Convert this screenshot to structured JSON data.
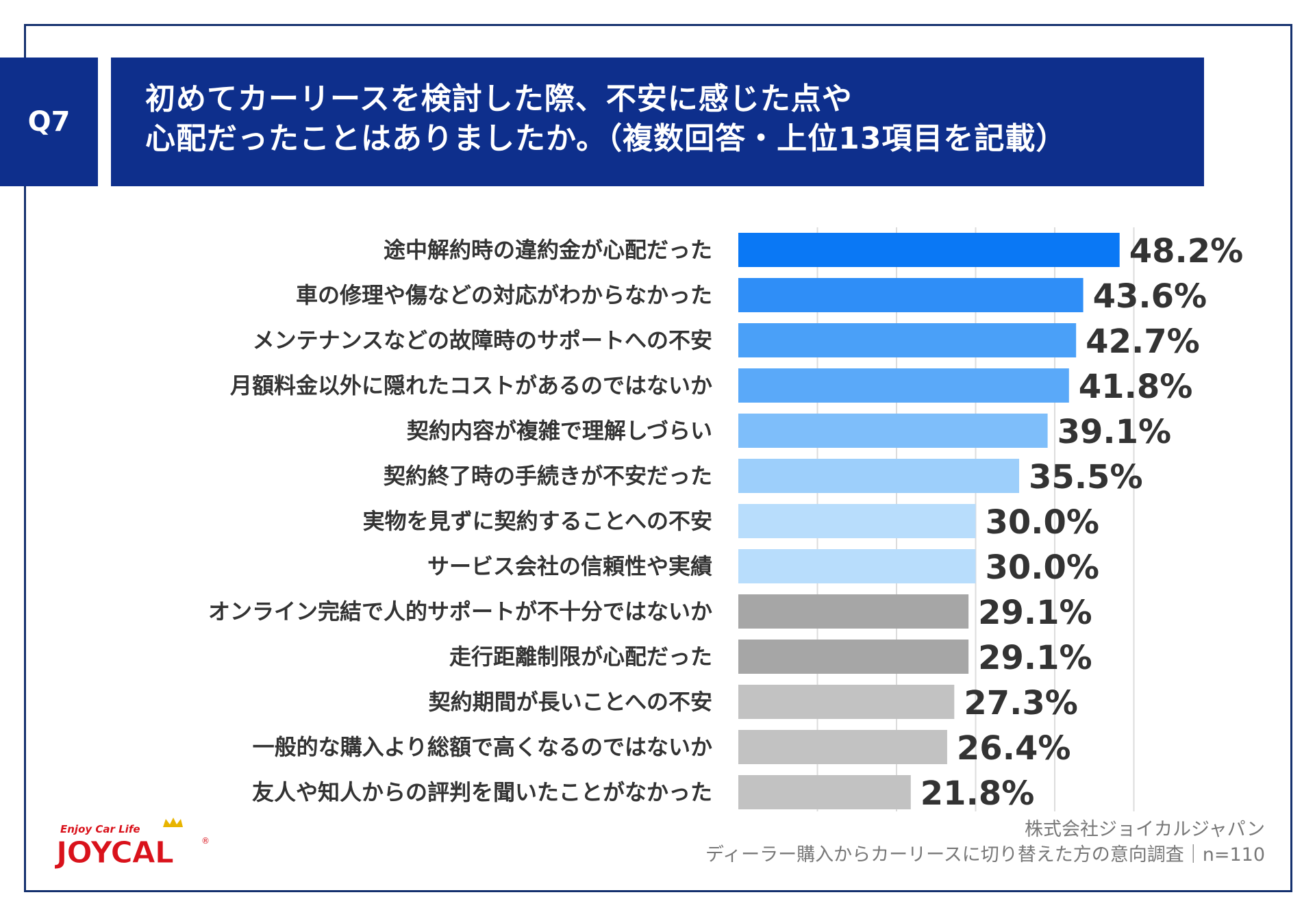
{
  "question": {
    "number": "Q7",
    "title_line1": "初めてカーリースを検討した際、不安に感じた点や",
    "title_line2": "心配だったことはありましたか。（複数回答・上位13項目を記載）"
  },
  "chart_data": {
    "type": "bar",
    "orientation": "horizontal",
    "categories": [
      "途中解約時の違約金が心配だった",
      "車の修理や傷などの対応がわからなかった",
      "メンテナンスなどの故障時のサポートへの不安",
      "月額料金以外に隠れたコストがあるのではないか",
      "契約内容が複雑で理解しづらい",
      "契約終了時の手続きが不安だった",
      "実物を見ずに契約することへの不安",
      "サービス会社の信頼性や実績",
      "オンライン完結で人的サポートが不十分ではないか",
      "走行距離制限が心配だった",
      "契約期間が長いことへの不安",
      "一般的な購入より総額で高くなるのではないか",
      "友人や知人からの評判を聞いたことがなかった"
    ],
    "values": [
      48.2,
      43.6,
      42.7,
      41.8,
      39.1,
      35.5,
      30.0,
      30.0,
      29.1,
      29.1,
      27.3,
      26.4,
      21.8
    ],
    "value_labels": [
      "48.2%",
      "43.6%",
      "42.7%",
      "41.8%",
      "39.1%",
      "35.5%",
      "30.0%",
      "30.0%",
      "29.1%",
      "29.1%",
      "27.3%",
      "26.4%",
      "21.8%"
    ],
    "bar_colors": [
      "#0a78f5",
      "#2f8ef7",
      "#4aa0f8",
      "#5aa9f9",
      "#7ebefa",
      "#9dcffb",
      "#b8ddfc",
      "#b8ddfc",
      "#a6a6a6",
      "#a6a6a6",
      "#c2c2c2",
      "#c2c2c2",
      "#c2c2c2"
    ],
    "xlim": [
      0,
      60
    ],
    "gridlines": [
      10,
      20,
      30,
      40,
      50
    ],
    "unit": "%"
  },
  "source": {
    "line1": "株式会社ジョイカルジャパン",
    "line2": "ディーラー購入からカーリースに切り替えた方の意向調査｜n=110"
  },
  "logo": {
    "tagline": "Enjoy Car Life",
    "name": "JOYCAL",
    "mark": "®"
  },
  "colors": {
    "navy": "#0e2f8c",
    "frame": "#14306e",
    "logo_red": "#d9121b",
    "crown_gold": "#e8b400"
  }
}
